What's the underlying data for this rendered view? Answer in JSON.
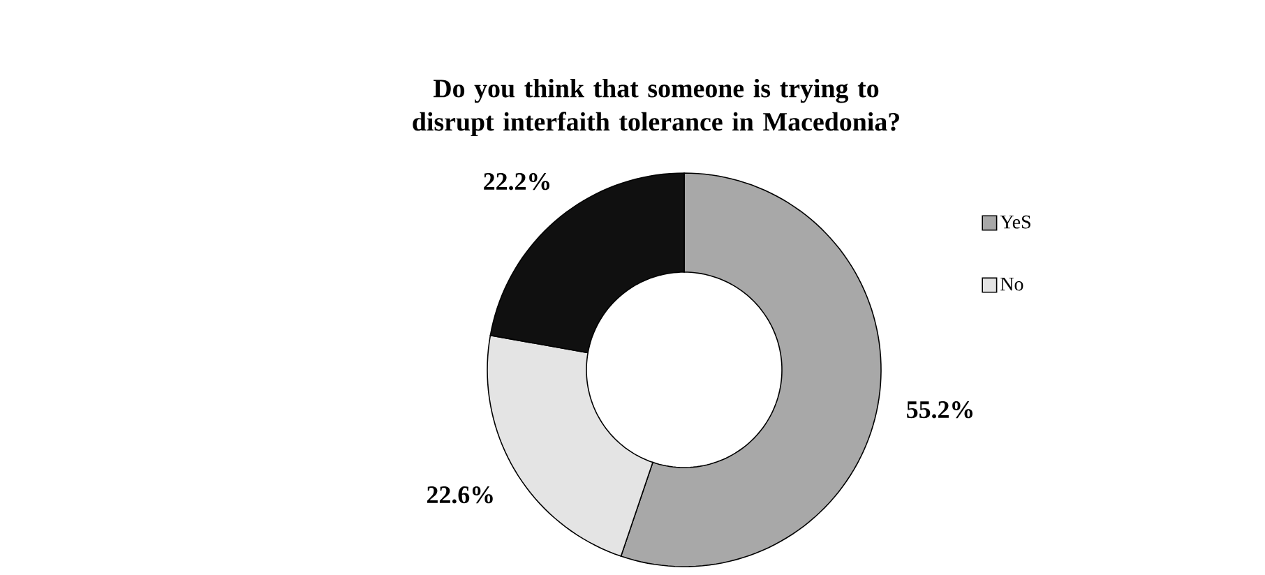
{
  "chart_data": {
    "type": "donut",
    "title": "Do you think that someone is trying to disrupt interfaith tolerance in Macedonia?",
    "categories": [
      "YeS",
      "No",
      null
    ],
    "values": [
      55.2,
      22.6,
      22.2
    ],
    "colors": [
      "#a8a8a8",
      "#e4e4e4",
      "#101010"
    ],
    "value_labels": [
      "55.2%",
      "22.6%",
      "22.2%"
    ],
    "legend": "right"
  }
}
